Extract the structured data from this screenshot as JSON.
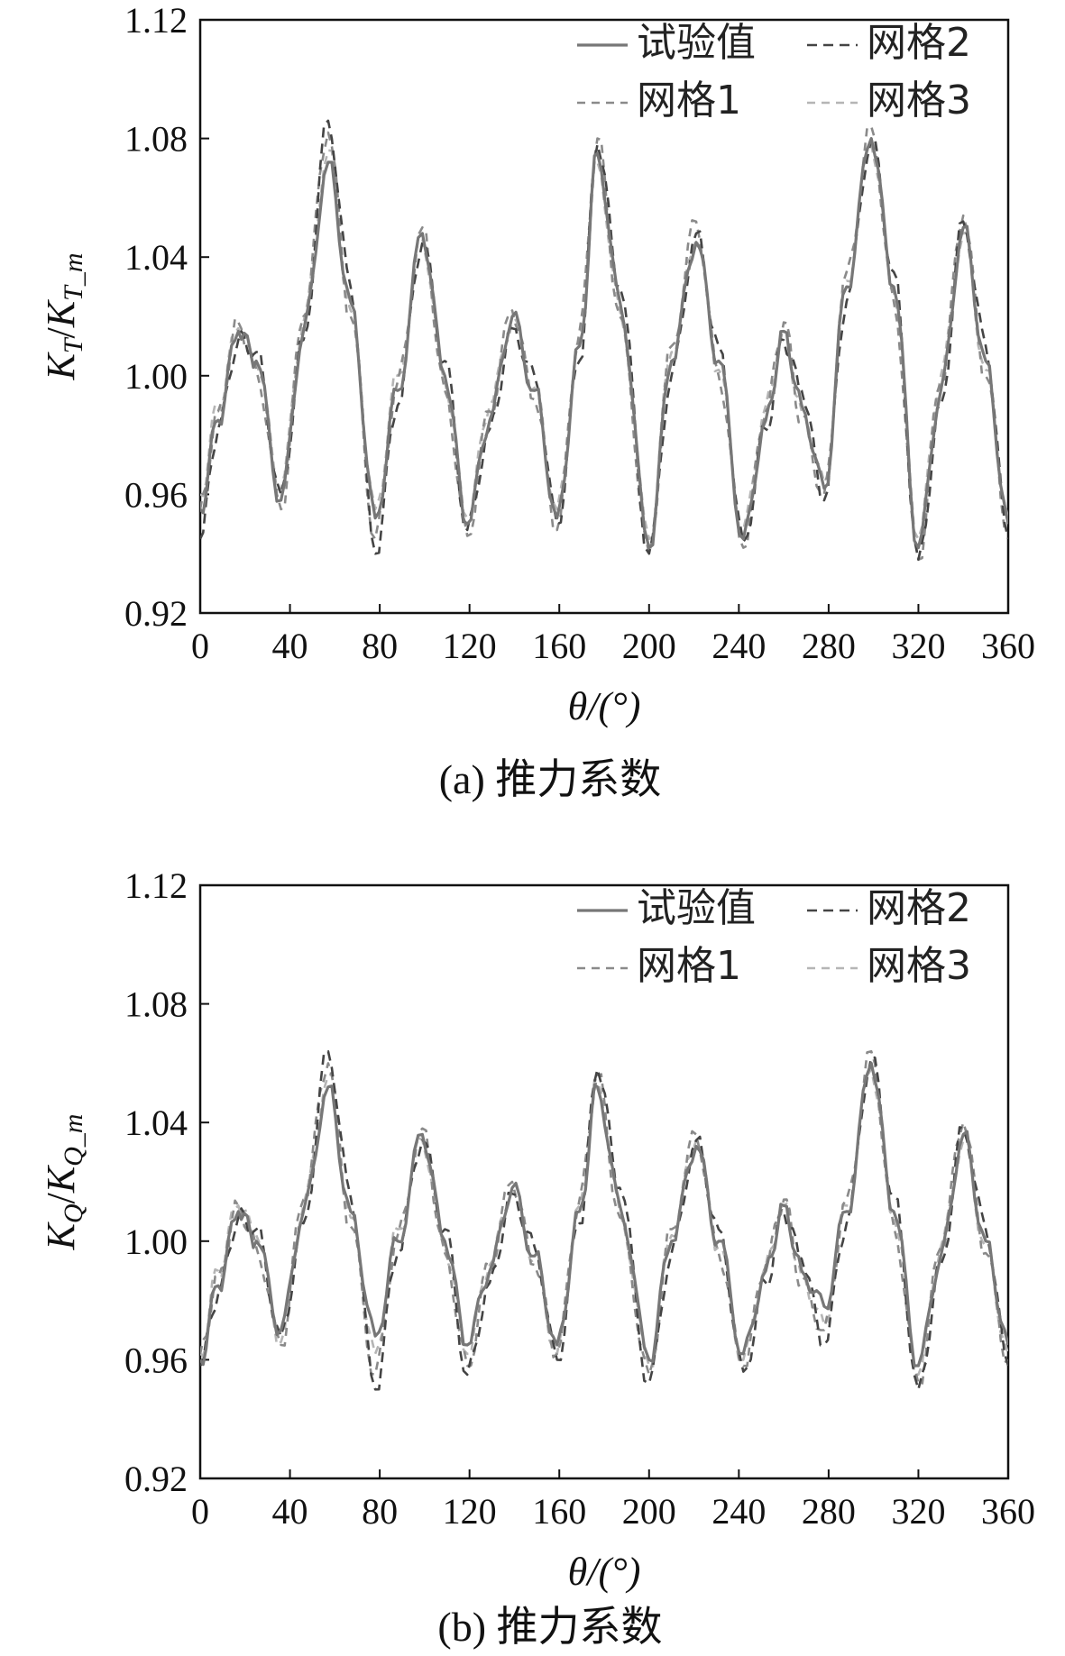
{
  "chart_data": [
    {
      "type": "line",
      "caption": "(a) 推力系数",
      "xlabel": "θ/(°)",
      "ylabel_main": "K",
      "ylabel_main_sub": "T",
      "ylabel_den": "K",
      "ylabel_den_sub": "T_m",
      "xlim": [
        0,
        360
      ],
      "ylim": [
        0.92,
        1.12
      ],
      "xticks": [
        "0",
        "40",
        "80",
        "120",
        "160",
        "200",
        "240",
        "280",
        "320",
        "360"
      ],
      "yticks": [
        "0.92",
        "0.96",
        "1.00",
        "1.04",
        "1.08",
        "1.12"
      ],
      "grid": false,
      "legend_position": "top-right",
      "x": [
        0,
        8,
        17,
        25,
        36,
        46,
        57,
        67,
        78,
        88,
        99,
        109,
        119,
        129,
        139,
        149,
        159,
        169,
        177,
        187,
        200,
        210,
        221,
        231,
        242,
        252,
        260,
        268,
        278,
        288,
        299,
        309,
        320,
        330,
        340,
        350,
        360
      ],
      "series": [
        {
          "name": "试验值",
          "values": [
            0.955,
            0.985,
            1.015,
            1.005,
            0.958,
            1.015,
            1.072,
            1.025,
            0.952,
            0.995,
            1.048,
            1.0,
            0.95,
            0.985,
            1.02,
            0.995,
            0.952,
            1.01,
            1.075,
            1.025,
            0.942,
            1.005,
            1.045,
            1.005,
            0.945,
            0.985,
            1.015,
            0.99,
            0.962,
            1.03,
            1.08,
            1.03,
            0.942,
            0.995,
            1.05,
            1.005,
            0.95
          ]
        },
        {
          "name": "网格1",
          "values": [
            0.955,
            0.988,
            1.018,
            1.002,
            0.955,
            1.02,
            1.082,
            1.02,
            0.945,
            0.998,
            1.05,
            0.995,
            0.946,
            0.988,
            1.022,
            0.992,
            0.948,
            1.015,
            1.08,
            1.02,
            0.94,
            1.01,
            1.052,
            1.0,
            0.942,
            0.988,
            1.018,
            0.985,
            0.96,
            1.035,
            1.084,
            1.025,
            0.938,
            0.998,
            1.054,
            1.0,
            0.948
          ]
        },
        {
          "name": "网格2",
          "values": [
            0.945,
            0.982,
            1.012,
            1.008,
            0.96,
            1.012,
            1.086,
            1.03,
            0.94,
            0.99,
            1.045,
            1.005,
            0.948,
            0.982,
            1.016,
            1.0,
            0.95,
            1.005,
            1.078,
            1.03,
            0.94,
            1.0,
            1.048,
            1.01,
            0.944,
            0.982,
            1.012,
            0.995,
            0.958,
            1.025,
            1.08,
            1.035,
            0.938,
            0.99,
            1.052,
            1.01,
            0.945
          ]
        },
        {
          "name": "网格3",
          "values": [
            0.96,
            0.99,
            1.016,
            1.004,
            0.962,
            1.018,
            1.076,
            1.022,
            0.955,
            1.0,
            1.046,
            0.998,
            0.952,
            0.99,
            1.018,
            0.996,
            0.955,
            1.012,
            1.072,
            1.022,
            0.945,
            1.008,
            1.046,
            1.002,
            0.948,
            0.99,
            1.014,
            0.988,
            0.964,
            1.032,
            1.078,
            1.028,
            0.945,
            1.0,
            1.048,
            1.002,
            0.952
          ]
        }
      ]
    },
    {
      "type": "line",
      "caption": "(b) 推力系数",
      "xlabel": "θ/(°)",
      "ylabel_main": "K",
      "ylabel_main_sub": "Q",
      "ylabel_den": "K",
      "ylabel_den_sub": "Q_m",
      "xlim": [
        0,
        360
      ],
      "ylim": [
        0.92,
        1.12
      ],
      "xticks": [
        "0",
        "40",
        "80",
        "120",
        "160",
        "200",
        "240",
        "280",
        "320",
        "360"
      ],
      "yticks": [
        "0.92",
        "0.96",
        "1.00",
        "1.04",
        "1.08",
        "1.12"
      ],
      "grid": false,
      "legend_position": "top-right",
      "x": [
        0,
        8,
        17,
        25,
        36,
        46,
        57,
        67,
        78,
        88,
        99,
        109,
        119,
        129,
        139,
        149,
        159,
        169,
        177,
        187,
        200,
        210,
        221,
        231,
        242,
        252,
        260,
        268,
        278,
        288,
        299,
        309,
        320,
        330,
        340,
        350,
        360
      ],
      "series": [
        {
          "name": "试验值",
          "values": [
            0.96,
            0.985,
            1.01,
            1.0,
            0.97,
            1.01,
            1.052,
            1.01,
            0.968,
            1.0,
            1.036,
            1.0,
            0.965,
            0.99,
            1.018,
            0.995,
            0.965,
            1.01,
            1.052,
            1.012,
            0.96,
            1.0,
            1.032,
            1.0,
            0.962,
            0.99,
            1.012,
            0.99,
            0.978,
            1.01,
            1.06,
            1.01,
            0.958,
            0.995,
            1.036,
            1.0,
            0.965
          ]
        },
        {
          "name": "网格1",
          "values": [
            0.962,
            0.988,
            1.012,
            0.998,
            0.965,
            1.014,
            1.06,
            1.005,
            0.955,
            1.002,
            1.038,
            0.996,
            0.958,
            0.992,
            1.02,
            0.992,
            0.962,
            1.014,
            1.056,
            1.008,
            0.955,
            1.004,
            1.036,
            0.996,
            0.958,
            0.992,
            1.014,
            0.986,
            0.97,
            1.014,
            1.064,
            1.005,
            0.952,
            0.998,
            1.04,
            0.996,
            0.96
          ]
        },
        {
          "name": "网格2",
          "values": [
            0.958,
            0.982,
            1.008,
            1.004,
            0.968,
            1.006,
            1.064,
            1.015,
            0.95,
            0.996,
            1.034,
            1.004,
            0.955,
            0.986,
            1.016,
            0.998,
            0.96,
            1.006,
            1.058,
            1.018,
            0.952,
            0.996,
            1.034,
            1.004,
            0.956,
            0.986,
            1.01,
            0.994,
            0.965,
            1.006,
            1.062,
            1.015,
            0.95,
            0.992,
            1.038,
            1.004,
            0.958
          ]
        },
        {
          "name": "网格3",
          "values": [
            0.962,
            0.99,
            1.012,
            1.002,
            0.966,
            1.012,
            1.056,
            1.008,
            0.962,
            1.004,
            1.034,
            0.998,
            0.962,
            0.992,
            1.018,
            0.994,
            0.962,
            1.012,
            1.054,
            1.01,
            0.958,
            1.002,
            1.034,
            0.998,
            0.96,
            0.992,
            1.012,
            0.988,
            0.972,
            1.012,
            1.058,
            1.008,
            0.955,
            0.998,
            1.034,
            0.998,
            0.962
          ]
        }
      ]
    }
  ],
  "series_styles": [
    {
      "color": "#777777",
      "dash": "none",
      "width": 3.2
    },
    {
      "color": "#8a8a8a",
      "dash": "9 7",
      "width": 2.6
    },
    {
      "color": "#444444",
      "dash": "11 7",
      "width": 2.6
    },
    {
      "color": "#b5b5b5",
      "dash": "9 7",
      "width": 2.6
    }
  ]
}
